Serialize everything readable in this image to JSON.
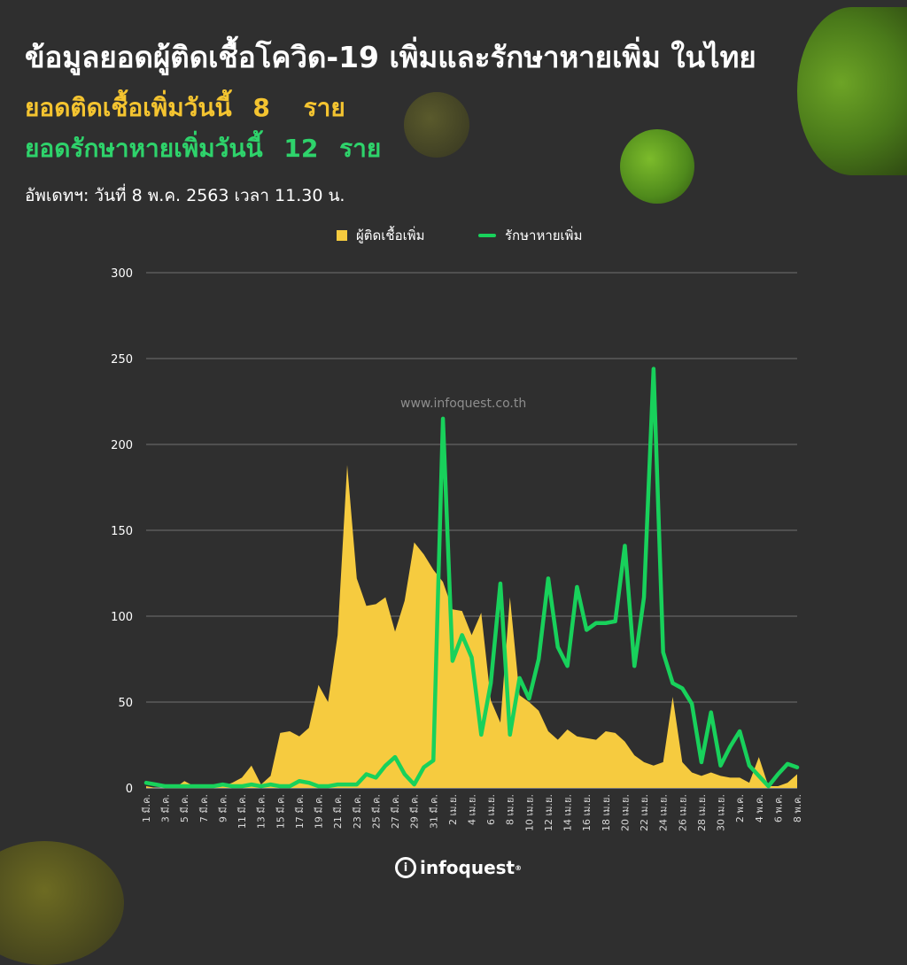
{
  "header": {
    "title": "ข้อมูลยอดผู้ติดเชื้อโควิด-19 เพิ่มและรักษาหายเพิ่ม ในไทย",
    "new_cases_label": "ยอดติดเชื้อเพิ่มวันนี้",
    "new_cases_value": "8",
    "new_cases_unit": "ราย",
    "recovered_label": "ยอดรักษาหายเพิ่มวันนี้",
    "recovered_value": "12",
    "recovered_unit": "ราย",
    "updated": "อัพเดทฯ: วันที่  8 พ.ค. 2563 เวลา 11.30 น."
  },
  "watermark": "www.infoquest.co.th",
  "logo": {
    "text": "infoquest",
    "badge": "i",
    "mark": "®"
  },
  "colors": {
    "cases": "#f6cb3f",
    "recovered": "#18d15b",
    "title": "#ffffff",
    "cases_text": "#f4c430",
    "recovered_text": "#2ed36b"
  },
  "chart_data": {
    "type": "area",
    "ylim": [
      0,
      300
    ],
    "yticks": [
      0,
      50,
      100,
      150,
      200,
      250,
      300
    ],
    "grid": true,
    "legend_position": "top-center",
    "x": [
      "1 มี.ค.",
      "2 มี.ค.",
      "3 มี.ค.",
      "4 มี.ค.",
      "5 มี.ค.",
      "6 มี.ค.",
      "7 มี.ค.",
      "8 มี.ค.",
      "9 มี.ค.",
      "10 มี.ค.",
      "11 มี.ค.",
      "12 มี.ค.",
      "13 มี.ค.",
      "14 มี.ค.",
      "15 มี.ค.",
      "16 มี.ค.",
      "17 มี.ค.",
      "18 มี.ค.",
      "19 มี.ค.",
      "20 มี.ค.",
      "21 มี.ค.",
      "22 มี.ค.",
      "23 มี.ค.",
      "24 มี.ค.",
      "25 มี.ค.",
      "26 มี.ค.",
      "27 มี.ค.",
      "28 มี.ค.",
      "29 มี.ค.",
      "30 มี.ค.",
      "31 มี.ค.",
      "1 เม.ย.",
      "2 เม.ย.",
      "3 เม.ย.",
      "4 เม.ย.",
      "5 เม.ย.",
      "6 เม.ย.",
      "7 เม.ย.",
      "8 เม.ย.",
      "9 เม.ย.",
      "10 เม.ย.",
      "11 เม.ย.",
      "12 เม.ย.",
      "13 เม.ย.",
      "14 เม.ย.",
      "15 เม.ย.",
      "16 เม.ย.",
      "17 เม.ย.",
      "18 เม.ย.",
      "19 เม.ย.",
      "20 เม.ย.",
      "21 เม.ย.",
      "22 เม.ย.",
      "23 เม.ย.",
      "24 เม.ย.",
      "25 เม.ย.",
      "26 เม.ย.",
      "27 เม.ย.",
      "28 เม.ย.",
      "29 เม.ย.",
      "30 เม.ย.",
      "1 พ.ค.",
      "2 พ.ค.",
      "3 พ.ค.",
      "4 พ.ค.",
      "5 พ.ค.",
      "6 พ.ค.",
      "7 พ.ค.",
      "8 พ.ค."
    ],
    "tick_labels": [
      "1 มี.ค.",
      "3 มี.ค.",
      "5 มี.ค.",
      "7 มี.ค.",
      "9 มี.ค.",
      "11 มี.ค.",
      "13 มี.ค.",
      "15 มี.ค.",
      "17 มี.ค.",
      "19 มี.ค.",
      "21 มี.ค.",
      "23 มี.ค.",
      "25 มี.ค.",
      "27 มี.ค.",
      "29 มี.ค.",
      "31 มี.ค.",
      "2 เม.ย.",
      "4 เม.ย.",
      "6 เม.ย.",
      "8 เม.ย.",
      "10 เม.ย.",
      "12 เม.ย.",
      "14 เม.ย.",
      "16 เม.ย.",
      "18 เม.ย.",
      "20 เม.ย.",
      "22 เม.ย.",
      "24 เม.ย.",
      "26 เม.ย.",
      "28 เม.ย.",
      "30 เม.ย.",
      "2 พ.ค.",
      "4 พ.ค.",
      "6 พ.ค.",
      "8 พ.ค."
    ],
    "series": [
      {
        "name": "ผู้ติดเชื้อเพิ่ม",
        "type": "area",
        "values": [
          1,
          0,
          0,
          0,
          4,
          1,
          0,
          0,
          1,
          3,
          6,
          13,
          2,
          7,
          32,
          33,
          30,
          35,
          60,
          50,
          89,
          188,
          122,
          106,
          107,
          111,
          91,
          109,
          143,
          136,
          127,
          120,
          104,
          103,
          89,
          102,
          51,
          38,
          111,
          54,
          50,
          45,
          33,
          28,
          34,
          30,
          29,
          28,
          33,
          32,
          27,
          19,
          15,
          13,
          15,
          53,
          15,
          9,
          7,
          9,
          7,
          6,
          6,
          3,
          18,
          1,
          1,
          3,
          8
        ]
      },
      {
        "name": "รักษาหายเพิ่ม",
        "type": "line",
        "values": [
          3,
          2,
          1,
          1,
          1,
          1,
          1,
          1,
          2,
          1,
          1,
          2,
          1,
          2,
          1,
          1,
          4,
          3,
          1,
          1,
          2,
          2,
          2,
          8,
          6,
          13,
          18,
          8,
          2,
          12,
          16,
          215,
          74,
          89,
          76,
          31,
          61,
          119,
          31,
          64,
          52,
          75,
          122,
          82,
          71,
          117,
          92,
          96,
          96,
          97,
          141,
          71,
          111,
          244,
          79,
          61,
          58,
          49,
          15,
          44,
          13,
          24,
          33,
          13,
          7,
          1,
          8,
          14,
          12
        ]
      }
    ]
  }
}
